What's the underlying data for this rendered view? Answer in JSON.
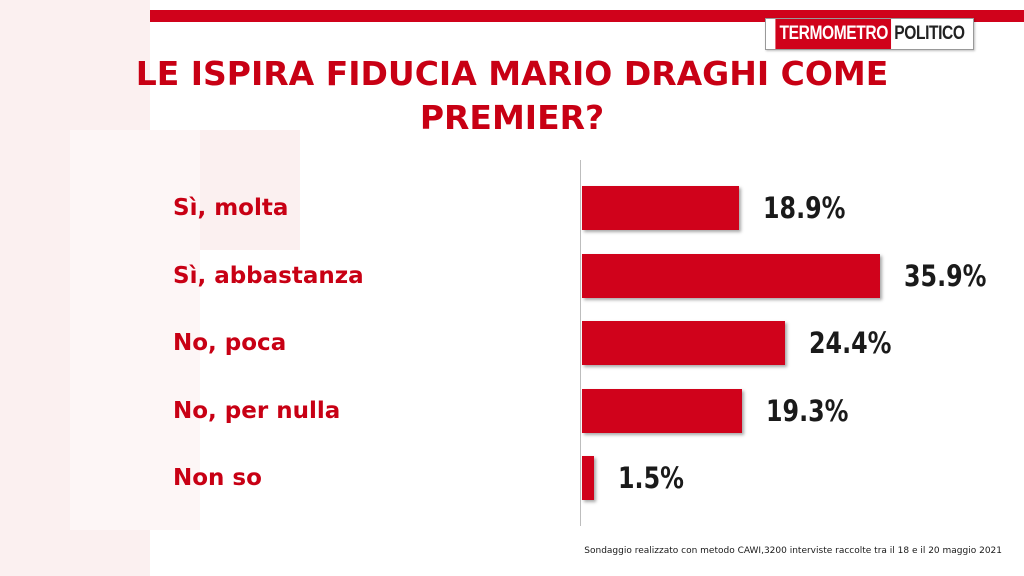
{
  "brand": {
    "logo_part1": "TERMOMETRO",
    "logo_part2": "POLITICO",
    "accent_color": "#d0021b",
    "title_color": "#c80014"
  },
  "chart_data": {
    "type": "bar",
    "orientation": "horizontal",
    "title": "LE ISPIRA FIDUCIA MARIO DRAGHI COME PREMIER?",
    "categories": [
      "Sì, molta",
      "Sì, abbastanza",
      "No, poca",
      "No, per nulla",
      "Non so"
    ],
    "values": [
      18.9,
      35.9,
      24.4,
      19.3,
      1.5
    ],
    "value_labels": [
      "18.9%",
      "35.9%",
      "24.4%",
      "19.3%",
      "1.5%"
    ],
    "unit": "%",
    "xlim": [
      0,
      36
    ],
    "grid": false,
    "legend": "none",
    "bar_color": "#d0021b"
  },
  "footnote": "Sondaggio realizzato con metodo CAWI,3200 interviste raccolte tra il 18  e il 20 maggio 2021"
}
